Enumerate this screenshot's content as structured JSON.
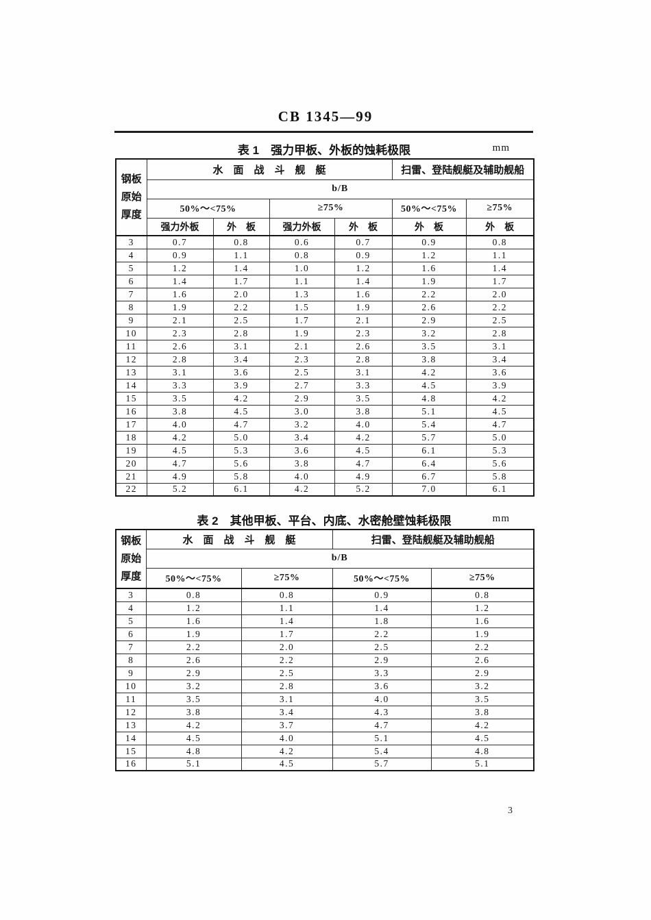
{
  "page": {
    "doc_number": "CB 1345—99",
    "page_number": "3"
  },
  "table1": {
    "caption": "表 1　强力甲板、外板的蚀耗极限",
    "unit": "mm",
    "header": {
      "thickness": "钢板\n原始\n厚度",
      "group1": "水　面　战　斗　舰　艇",
      "group2": "扫雷、登陆舰艇及辅助舰船",
      "bb": "b/B",
      "range1": "50%～<75%",
      "range2": "≥75%",
      "range3": "50%～<75%",
      "range4": "≥75%",
      "sub": [
        "强力外板",
        "外　板",
        "强力外板",
        "外　板",
        "外　板",
        "外　板"
      ]
    },
    "rows": [
      [
        "3",
        "0.7",
        "0.8",
        "0.6",
        "0.7",
        "0.9",
        "0.8"
      ],
      [
        "4",
        "0.9",
        "1.1",
        "0.8",
        "0.9",
        "1.2",
        "1.1"
      ],
      [
        "5",
        "1.2",
        "1.4",
        "1.0",
        "1.2",
        "1.6",
        "1.4"
      ],
      [
        "6",
        "1.4",
        "1.7",
        "1.1",
        "1.4",
        "1.9",
        "1.7"
      ],
      [
        "7",
        "1.6",
        "2.0",
        "1.3",
        "1.6",
        "2.2",
        "2.0"
      ],
      [
        "8",
        "1.9",
        "2.2",
        "1.5",
        "1.9",
        "2.6",
        "2.2"
      ],
      [
        "9",
        "2.1",
        "2.5",
        "1.7",
        "2.1",
        "2.9",
        "2.5"
      ],
      [
        "10",
        "2.3",
        "2.8",
        "1.9",
        "2.3",
        "3.2",
        "2.8"
      ],
      [
        "11",
        "2.6",
        "3.1",
        "2.1",
        "2.6",
        "3.5",
        "3.1"
      ],
      [
        "12",
        "2.8",
        "3.4",
        "2.3",
        "2.8",
        "3.8",
        "3.4"
      ],
      [
        "13",
        "3.1",
        "3.6",
        "2.5",
        "3.1",
        "4.2",
        "3.6"
      ],
      [
        "14",
        "3.3",
        "3.9",
        "2.7",
        "3.3",
        "4.5",
        "3.9"
      ],
      [
        "15",
        "3.5",
        "4.2",
        "2.9",
        "3.5",
        "4.8",
        "4.2"
      ],
      [
        "16",
        "3.8",
        "4.5",
        "3.0",
        "3.8",
        "5.1",
        "4.5"
      ],
      [
        "17",
        "4.0",
        "4.7",
        "3.2",
        "4.0",
        "5.4",
        "4.7"
      ],
      [
        "18",
        "4.2",
        "5.0",
        "3.4",
        "4.2",
        "5.7",
        "5.0"
      ],
      [
        "19",
        "4.5",
        "5.3",
        "3.6",
        "4.5",
        "6.1",
        "5.3"
      ],
      [
        "20",
        "4.7",
        "5.6",
        "3.8",
        "4.7",
        "6.4",
        "5.6"
      ],
      [
        "21",
        "4.9",
        "5.8",
        "4.0",
        "4.9",
        "6.7",
        "5.8"
      ],
      [
        "22",
        "5.2",
        "6.1",
        "4.2",
        "5.2",
        "7.0",
        "6.1"
      ]
    ]
  },
  "table2": {
    "caption": "表 2　其他甲板、平台、内底、水密舱壁蚀耗极限",
    "unit": "mm",
    "header": {
      "thickness": "钢板\n原始\n厚度",
      "group1": "水　面　战　斗　舰　艇",
      "group2": "扫雷、登陆舰艇及辅助舰船",
      "bb": "b/B",
      "range1": "50%～<75%",
      "range2": "≥75%",
      "range3": "50%～<75%",
      "range4": "≥75%"
    },
    "rows": [
      [
        "3",
        "0.8",
        "0.8",
        "0.9",
        "0.8"
      ],
      [
        "4",
        "1.2",
        "1.1",
        "1.4",
        "1.2"
      ],
      [
        "5",
        "1.6",
        "1.4",
        "1.8",
        "1.6"
      ],
      [
        "6",
        "1.9",
        "1.7",
        "2.2",
        "1.9"
      ],
      [
        "7",
        "2.2",
        "2.0",
        "2.5",
        "2.2"
      ],
      [
        "8",
        "2.6",
        "2.2",
        "2.9",
        "2.6"
      ],
      [
        "9",
        "2.9",
        "2.5",
        "3.3",
        "2.9"
      ],
      [
        "10",
        "3.2",
        "2.8",
        "3.6",
        "3.2"
      ],
      [
        "11",
        "3.5",
        "3.1",
        "4.0",
        "3.5"
      ],
      [
        "12",
        "3.8",
        "3.4",
        "4.3",
        "3.8"
      ],
      [
        "13",
        "4.2",
        "3.7",
        "4.7",
        "4.2"
      ],
      [
        "14",
        "4.5",
        "4.0",
        "5.1",
        "4.5"
      ],
      [
        "15",
        "4.8",
        "4.2",
        "5.4",
        "4.8"
      ],
      [
        "16",
        "5.1",
        "4.5",
        "5.7",
        "5.1"
      ]
    ]
  }
}
